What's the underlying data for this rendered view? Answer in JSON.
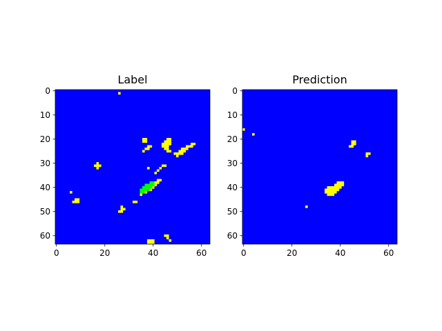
{
  "colors": {
    "background": "#0000ff",
    "label_only": "#ffff00",
    "overlap": "#00ff00",
    "prediction": "#ffff00"
  },
  "chart_data": [
    {
      "type": "heatmap",
      "title": "Label",
      "xlabel": "",
      "ylabel": "",
      "xlim": [
        0,
        63
      ],
      "ylim": [
        63,
        0
      ],
      "x_ticks": [
        0,
        20,
        40,
        60
      ],
      "y_ticks": [
        0,
        10,
        20,
        30,
        40,
        50,
        60
      ],
      "grid": 64,
      "cells": [
        {
          "x": 26,
          "y": 1,
          "v": 1
        },
        {
          "x": 36,
          "y": 20,
          "v": 1
        },
        {
          "x": 37,
          "y": 20,
          "v": 1
        },
        {
          "x": 36,
          "y": 21,
          "v": 1
        },
        {
          "x": 37,
          "y": 21,
          "v": 1
        },
        {
          "x": 46,
          "y": 20,
          "v": 1
        },
        {
          "x": 47,
          "y": 20,
          "v": 1
        },
        {
          "x": 45,
          "y": 21,
          "v": 1
        },
        {
          "x": 46,
          "y": 21,
          "v": 1
        },
        {
          "x": 47,
          "y": 21,
          "v": 1
        },
        {
          "x": 44,
          "y": 22,
          "v": 1
        },
        {
          "x": 45,
          "y": 22,
          "v": 1
        },
        {
          "x": 46,
          "y": 22,
          "v": 1
        },
        {
          "x": 47,
          "y": 22,
          "v": 1
        },
        {
          "x": 44,
          "y": 23,
          "v": 1
        },
        {
          "x": 45,
          "y": 23,
          "v": 1
        },
        {
          "x": 46,
          "y": 23,
          "v": 1
        },
        {
          "x": 45,
          "y": 24,
          "v": 1
        },
        {
          "x": 46,
          "y": 24,
          "v": 1
        },
        {
          "x": 46,
          "y": 25,
          "v": 1
        },
        {
          "x": 47,
          "y": 25,
          "v": 1
        },
        {
          "x": 38,
          "y": 23,
          "v": 1
        },
        {
          "x": 39,
          "y": 23,
          "v": 1
        },
        {
          "x": 37,
          "y": 24,
          "v": 1
        },
        {
          "x": 38,
          "y": 24,
          "v": 1
        },
        {
          "x": 36,
          "y": 25,
          "v": 1
        },
        {
          "x": 56,
          "y": 22,
          "v": 1
        },
        {
          "x": 57,
          "y": 22,
          "v": 1
        },
        {
          "x": 54,
          "y": 23,
          "v": 1
        },
        {
          "x": 55,
          "y": 23,
          "v": 1
        },
        {
          "x": 56,
          "y": 23,
          "v": 1
        },
        {
          "x": 52,
          "y": 24,
          "v": 1
        },
        {
          "x": 53,
          "y": 24,
          "v": 1
        },
        {
          "x": 54,
          "y": 24,
          "v": 1
        },
        {
          "x": 51,
          "y": 25,
          "v": 1
        },
        {
          "x": 52,
          "y": 25,
          "v": 1
        },
        {
          "x": 53,
          "y": 25,
          "v": 1
        },
        {
          "x": 49,
          "y": 26,
          "v": 1
        },
        {
          "x": 50,
          "y": 26,
          "v": 1
        },
        {
          "x": 51,
          "y": 26,
          "v": 1
        },
        {
          "x": 52,
          "y": 26,
          "v": 1
        },
        {
          "x": 50,
          "y": 27,
          "v": 1
        },
        {
          "x": 17,
          "y": 30,
          "v": 1
        },
        {
          "x": 16,
          "y": 31,
          "v": 1
        },
        {
          "x": 17,
          "y": 31,
          "v": 1
        },
        {
          "x": 18,
          "y": 31,
          "v": 1
        },
        {
          "x": 17,
          "y": 32,
          "v": 1
        },
        {
          "x": 38,
          "y": 32,
          "v": 1
        },
        {
          "x": 44,
          "y": 31,
          "v": 1
        },
        {
          "x": 45,
          "y": 31,
          "v": 1
        },
        {
          "x": 43,
          "y": 32,
          "v": 1
        },
        {
          "x": 42,
          "y": 33,
          "v": 1
        },
        {
          "x": 41,
          "y": 34,
          "v": 1
        },
        {
          "x": 42,
          "y": 37,
          "v": 1
        },
        {
          "x": 43,
          "y": 37,
          "v": 1
        },
        {
          "x": 41,
          "y": 38,
          "v": 1
        },
        {
          "x": 42,
          "y": 38,
          "v": 1
        },
        {
          "x": 41,
          "y": 39,
          "v": 1
        },
        {
          "x": 40,
          "y": 40,
          "v": 1
        },
        {
          "x": 39,
          "y": 41,
          "v": 1
        },
        {
          "x": 37,
          "y": 42,
          "v": 1
        },
        {
          "x": 35,
          "y": 43,
          "v": 1
        },
        {
          "x": 39,
          "y": 38,
          "v": 2
        },
        {
          "x": 40,
          "y": 38,
          "v": 2
        },
        {
          "x": 37,
          "y": 39,
          "v": 2
        },
        {
          "x": 38,
          "y": 39,
          "v": 2
        },
        {
          "x": 39,
          "y": 39,
          "v": 2
        },
        {
          "x": 40,
          "y": 39,
          "v": 2
        },
        {
          "x": 36,
          "y": 40,
          "v": 2
        },
        {
          "x": 37,
          "y": 40,
          "v": 2
        },
        {
          "x": 38,
          "y": 40,
          "v": 2
        },
        {
          "x": 39,
          "y": 40,
          "v": 2
        },
        {
          "x": 35,
          "y": 41,
          "v": 2
        },
        {
          "x": 36,
          "y": 41,
          "v": 2
        },
        {
          "x": 37,
          "y": 41,
          "v": 2
        },
        {
          "x": 38,
          "y": 41,
          "v": 2
        },
        {
          "x": 35,
          "y": 42,
          "v": 2
        },
        {
          "x": 36,
          "y": 42,
          "v": 2
        },
        {
          "x": 6,
          "y": 42,
          "v": 1
        },
        {
          "x": 8,
          "y": 45,
          "v": 1
        },
        {
          "x": 9,
          "y": 45,
          "v": 1
        },
        {
          "x": 7,
          "y": 46,
          "v": 1
        },
        {
          "x": 8,
          "y": 46,
          "v": 1
        },
        {
          "x": 9,
          "y": 46,
          "v": 1
        },
        {
          "x": 32,
          "y": 46,
          "v": 1
        },
        {
          "x": 33,
          "y": 46,
          "v": 1
        },
        {
          "x": 27,
          "y": 48,
          "v": 1
        },
        {
          "x": 27,
          "y": 49,
          "v": 1
        },
        {
          "x": 28,
          "y": 49,
          "v": 1
        },
        {
          "x": 26,
          "y": 50,
          "v": 1
        },
        {
          "x": 27,
          "y": 50,
          "v": 1
        },
        {
          "x": 45,
          "y": 60,
          "v": 1
        },
        {
          "x": 46,
          "y": 60,
          "v": 1
        },
        {
          "x": 46,
          "y": 61,
          "v": 1
        },
        {
          "x": 47,
          "y": 62,
          "v": 1
        },
        {
          "x": 38,
          "y": 62,
          "v": 1
        },
        {
          "x": 39,
          "y": 62,
          "v": 1
        },
        {
          "x": 40,
          "y": 62,
          "v": 1
        },
        {
          "x": 38,
          "y": 63,
          "v": 1
        },
        {
          "x": 39,
          "y": 63,
          "v": 1
        },
        {
          "x": 40,
          "y": 63,
          "v": 1
        }
      ]
    },
    {
      "type": "heatmap",
      "title": "Prediction",
      "xlabel": "",
      "ylabel": "",
      "xlim": [
        0,
        63
      ],
      "ylim": [
        63,
        0
      ],
      "x_ticks": [
        0,
        20,
        40,
        60
      ],
      "y_ticks": [
        0,
        10,
        20,
        30,
        40,
        50,
        60
      ],
      "grid": 64,
      "cells": [
        {
          "x": 0,
          "y": 16,
          "v": 1
        },
        {
          "x": 4,
          "y": 18,
          "v": 1
        },
        {
          "x": 45,
          "y": 21,
          "v": 1
        },
        {
          "x": 46,
          "y": 21,
          "v": 1
        },
        {
          "x": 45,
          "y": 22,
          "v": 1
        },
        {
          "x": 46,
          "y": 22,
          "v": 1
        },
        {
          "x": 44,
          "y": 23,
          "v": 1
        },
        {
          "x": 45,
          "y": 23,
          "v": 1
        },
        {
          "x": 51,
          "y": 26,
          "v": 1
        },
        {
          "x": 52,
          "y": 26,
          "v": 1
        },
        {
          "x": 51,
          "y": 27,
          "v": 1
        },
        {
          "x": 39,
          "y": 38,
          "v": 1
        },
        {
          "x": 40,
          "y": 38,
          "v": 1
        },
        {
          "x": 41,
          "y": 38,
          "v": 1
        },
        {
          "x": 38,
          "y": 39,
          "v": 1
        },
        {
          "x": 39,
          "y": 39,
          "v": 1
        },
        {
          "x": 40,
          "y": 39,
          "v": 1
        },
        {
          "x": 41,
          "y": 39,
          "v": 1
        },
        {
          "x": 35,
          "y": 40,
          "v": 1
        },
        {
          "x": 36,
          "y": 40,
          "v": 1
        },
        {
          "x": 37,
          "y": 40,
          "v": 1
        },
        {
          "x": 38,
          "y": 40,
          "v": 1
        },
        {
          "x": 39,
          "y": 40,
          "v": 1
        },
        {
          "x": 40,
          "y": 40,
          "v": 1
        },
        {
          "x": 34,
          "y": 41,
          "v": 1
        },
        {
          "x": 35,
          "y": 41,
          "v": 1
        },
        {
          "x": 36,
          "y": 41,
          "v": 1
        },
        {
          "x": 37,
          "y": 41,
          "v": 1
        },
        {
          "x": 38,
          "y": 41,
          "v": 1
        },
        {
          "x": 39,
          "y": 41,
          "v": 1
        },
        {
          "x": 34,
          "y": 42,
          "v": 1
        },
        {
          "x": 35,
          "y": 42,
          "v": 1
        },
        {
          "x": 36,
          "y": 42,
          "v": 1
        },
        {
          "x": 37,
          "y": 42,
          "v": 1
        },
        {
          "x": 38,
          "y": 42,
          "v": 1
        },
        {
          "x": 35,
          "y": 43,
          "v": 1
        },
        {
          "x": 36,
          "y": 43,
          "v": 1
        },
        {
          "x": 37,
          "y": 43,
          "v": 1
        },
        {
          "x": 26,
          "y": 48,
          "v": 1
        }
      ]
    }
  ]
}
